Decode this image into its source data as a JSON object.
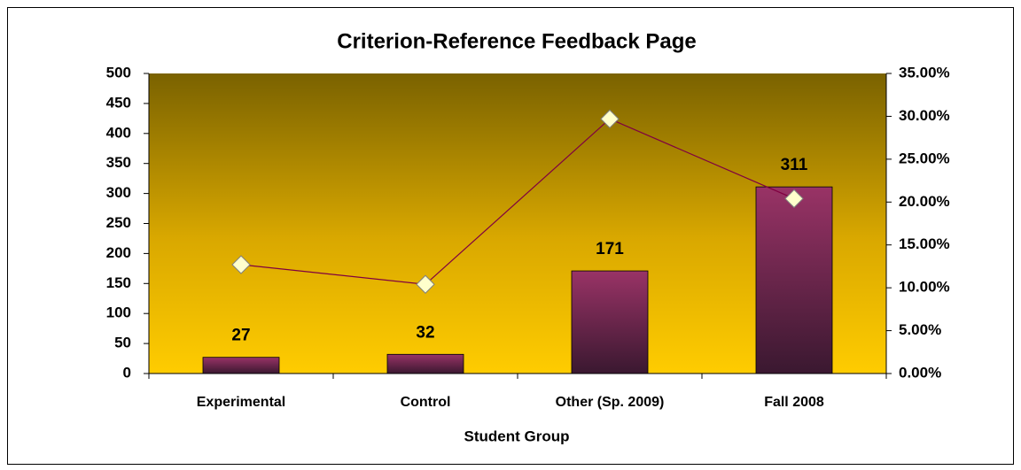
{
  "chart_data": {
    "type": "bar",
    "title": "Criterion-Reference Feedback Page",
    "x_label": "Student Group",
    "categories": [
      "Experimental",
      "Control",
      "Other (Sp. 2009)",
      "Fall 2008"
    ],
    "series": [
      {
        "type": "bar",
        "color": "#993366",
        "values": [
          27,
          32,
          171,
          311
        ]
      },
      {
        "type": "line",
        "axis": "y2",
        "color": "#800040",
        "values": [
          12.7,
          10.4,
          29.7,
          20.4
        ]
      }
    ],
    "ylim": [
      0,
      500
    ],
    "yticks": [
      0,
      50,
      100,
      150,
      200,
      250,
      300,
      350,
      400,
      450,
      500
    ],
    "y2lim": [
      0,
      35
    ],
    "y2ticks": [
      {
        "value": 0,
        "label": "0.00%"
      },
      {
        "value": 5,
        "label": "5.00%"
      },
      {
        "value": 10,
        "label": "10.00%"
      },
      {
        "value": 15,
        "label": "15.00%"
      },
      {
        "value": 20,
        "label": "20.00%"
      },
      {
        "value": 25,
        "label": "25.00%"
      },
      {
        "value": 30,
        "label": "30.00%"
      },
      {
        "value": 35,
        "label": "35.00%"
      }
    ],
    "grid": false
  }
}
